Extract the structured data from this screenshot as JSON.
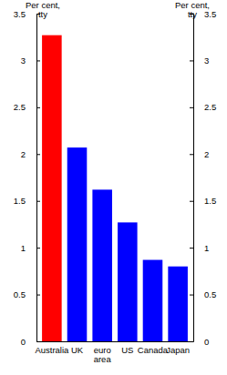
{
  "chart_data": {
    "type": "bar",
    "ylabel": "Per cent, tty",
    "y2label": "Per cent, tty",
    "categories": [
      "Australia",
      "UK",
      "euro area",
      "US",
      "Canada",
      "Japan"
    ],
    "values": [
      3.27,
      2.07,
      1.62,
      1.27,
      0.87,
      0.8
    ],
    "colors": [
      "#ff0000",
      "#0000ff",
      "#0000ff",
      "#0000ff",
      "#0000ff",
      "#0000ff"
    ],
    "ylim": [
      0,
      3.5
    ],
    "yticks": [
      0,
      0.5,
      1,
      1.5,
      2,
      2.5,
      3,
      3.5
    ],
    "y2lim": [
      0,
      3.5
    ],
    "y2ticks": [
      0,
      0.5,
      1,
      1.5,
      2,
      2.5,
      3,
      3.5
    ],
    "grid": false
  }
}
